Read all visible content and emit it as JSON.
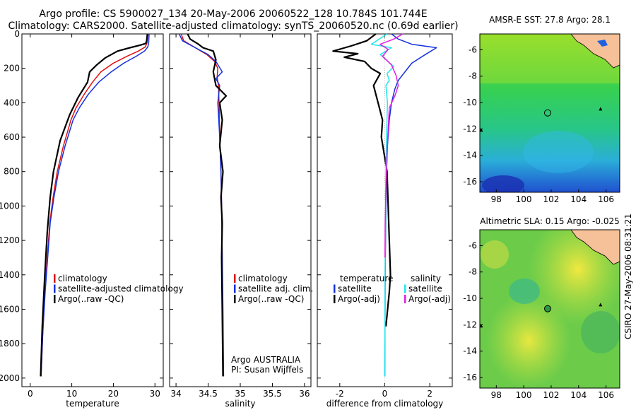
{
  "header": {
    "line1": "Argo profile: CS 5900027_134 20-May-2006 20060522_128 10.784S 101.744E",
    "line2": "Climatology: CARS2000. Satellite-adjusted climatology: synTS_20060520.nc (0.69d earlier)"
  },
  "side_label": "CSIRO 27-May-2006 08:31:21",
  "colors": {
    "red": "#dd1111",
    "blue": "#1530dd",
    "black": "#000000",
    "cyan": "#22e6ee",
    "magenta": "#e020e0"
  },
  "chart_data": [
    {
      "type": "line",
      "name": "temperature",
      "xlabel": "temperature",
      "xlim": [
        -2,
        32
      ],
      "ylim": [
        2050,
        0
      ],
      "xticks": [
        0,
        10,
        20,
        30
      ],
      "yticks": [
        0,
        200,
        400,
        600,
        800,
        1000,
        1200,
        1400,
        1600,
        1800,
        2000
      ],
      "legend": [
        "climatology",
        "satellite-adjusted climatology",
        "Argo(..raw -QC)"
      ],
      "series": [
        {
          "name": "climatology",
          "color": "red",
          "x": [
            28.3,
            28.1,
            27.7,
            26,
            23.3,
            20,
            17,
            15,
            13,
            11,
            9.8,
            8,
            6.5,
            5.5,
            4.7,
            4.1,
            3.5,
            3,
            2.6
          ],
          "y": [
            0,
            50,
            75,
            100,
            130,
            170,
            220,
            280,
            350,
            430,
            500,
            650,
            800,
            950,
            1100,
            1300,
            1500,
            1750,
            1990
          ]
        },
        {
          "name": "satellite-adjusted climatology",
          "color": "blue",
          "x": [
            28.6,
            28.5,
            28.3,
            27.5,
            25.5,
            22.5,
            19.5,
            16.5,
            14,
            11.8,
            10.3,
            8.4,
            6.8,
            5.7,
            4.8,
            4.2,
            3.6,
            3,
            2.6
          ],
          "y": [
            0,
            50,
            75,
            100,
            130,
            170,
            220,
            280,
            350,
            430,
            500,
            650,
            800,
            950,
            1100,
            1300,
            1500,
            1750,
            1990
          ]
        },
        {
          "name": "Argo(..raw -QC)",
          "color": "black",
          "x": [
            28.2,
            28,
            27.8,
            26.5,
            24,
            21,
            18,
            16,
            14.3,
            13.8,
            11.5,
            9.5,
            7.2,
            5.6,
            4.8,
            4.1,
            3.5,
            2.9,
            2.5
          ],
          "y": [
            0,
            40,
            55,
            65,
            80,
            100,
            140,
            180,
            220,
            280,
            370,
            470,
            620,
            800,
            950,
            1150,
            1400,
            1700,
            1990
          ]
        }
      ],
      "annotations": []
    },
    {
      "type": "line",
      "name": "salinity",
      "xlabel": "salinity",
      "xlim": [
        33.9,
        36.1
      ],
      "ylim": [
        2050,
        0
      ],
      "xticks": [
        34,
        34.5,
        35,
        35.5,
        36
      ],
      "xticklabels": [
        "34",
        "34.5",
        "35",
        "35.5",
        "36"
      ],
      "legend": [
        "climatology",
        "satellite adj. clim.",
        "Argo(..raw -QC)"
      ],
      "series": [
        {
          "name": "climatology",
          "color": "red",
          "x": [
            34.08,
            34.12,
            34.3,
            34.48,
            34.6,
            34.65,
            34.64,
            34.66,
            34.67,
            34.68,
            34.7,
            34.71,
            34.72,
            34.72,
            34.73
          ],
          "y": [
            0,
            40,
            80,
            120,
            160,
            200,
            250,
            300,
            400,
            600,
            800,
            1000,
            1300,
            1600,
            1990
          ]
        },
        {
          "name": "satellite adj. clim.",
          "color": "blue",
          "x": [
            34.05,
            34.1,
            34.3,
            34.5,
            34.62,
            34.72,
            34.62,
            34.68,
            34.65,
            34.68,
            34.7,
            34.71,
            34.72,
            34.73,
            34.74
          ],
          "y": [
            0,
            40,
            80,
            120,
            160,
            220,
            260,
            300,
            400,
            600,
            800,
            1000,
            1300,
            1600,
            1990
          ]
        },
        {
          "name": "Argo(..raw -QC)",
          "color": "black",
          "x": [
            34.18,
            34.22,
            34.35,
            34.42,
            34.58,
            34.62,
            34.58,
            34.62,
            34.78,
            34.68,
            34.72,
            34.68,
            34.73,
            34.7,
            34.72,
            34.71,
            34.72,
            34.73
          ],
          "y": [
            0,
            30,
            60,
            80,
            100,
            150,
            220,
            300,
            360,
            400,
            500,
            650,
            800,
            950,
            1100,
            1300,
            1600,
            1990
          ]
        }
      ],
      "annotations": [
        "Argo AUSTRALIA",
        "PI: Susan Wijffels"
      ]
    },
    {
      "type": "line",
      "name": "difference from climatology",
      "xlabel": "difference from climatology",
      "xlim": [
        -3,
        3
      ],
      "ylim": [
        2050,
        0
      ],
      "xticks": [
        -2,
        0,
        2
      ],
      "legend": [
        "temperature",
        "satellite",
        "Argo(-adj)",
        "salinity",
        "satellite",
        "Argo(-adj)"
      ],
      "series": [
        {
          "name": "temperature satellite",
          "color": "blue",
          "x": [
            0.3,
            0.6,
            1.2,
            2.3,
            1.8,
            1.2,
            0.9,
            0.6,
            0.45,
            0.3,
            0.2,
            0.12,
            0.08,
            0.05,
            0.02,
            0
          ],
          "y": [
            0,
            30,
            60,
            80,
            120,
            170,
            220,
            270,
            320,
            400,
            500,
            650,
            800,
            1000,
            1400,
            1990
          ]
        },
        {
          "name": "temperature Argo(-adj)",
          "color": "black",
          "x": [
            -0.4,
            -0.8,
            -1.5,
            -2.3,
            -1.2,
            -1.8,
            -0.9,
            -0.6,
            -0.2,
            -0.5,
            -0.3,
            -0.1,
            -0.15,
            0.1,
            0.15,
            0.2,
            0.25,
            0.2,
            0.05
          ],
          "y": [
            0,
            40,
            70,
            100,
            115,
            135,
            160,
            200,
            230,
            300,
            400,
            500,
            600,
            800,
            1000,
            1200,
            1400,
            1500,
            1700
          ]
        },
        {
          "name": "salinity satellite",
          "color": "cyan",
          "x": [
            0.1,
            -0.6,
            0.3,
            -0.2,
            0.4,
            0.1,
            0.2,
            0.05,
            0.12,
            0.08,
            0.05,
            0.04,
            0.02,
            0.01,
            0
          ],
          "y": [
            0,
            60,
            80,
            120,
            190,
            230,
            270,
            300,
            400,
            600,
            800,
            1000,
            1300,
            1600,
            1990
          ]
        },
        {
          "name": "salinity Argo(-adj)",
          "color": "magenta",
          "x": [
            0.8,
            0.4,
            -0.2,
            0.15,
            -0.1,
            0.3,
            0.5,
            0.6,
            0.45,
            0.2,
            0.15,
            0.1,
            0.05,
            0.02,
            0.01
          ],
          "y": [
            0,
            30,
            60,
            90,
            130,
            180,
            240,
            300,
            360,
            430,
            550,
            700,
            900,
            1100,
            1300
          ]
        }
      ],
      "annotations": []
    }
  ],
  "maps": [
    {
      "title": "AMSR-E SST: 27.8 Argo: 28.1",
      "xticks": [
        "98",
        "100",
        "102",
        "104",
        "106"
      ],
      "yticks": [
        "-6",
        "-8",
        "-10",
        "-12",
        "-14",
        "-16"
      ],
      "lon": [
        96.8,
        107
      ],
      "lat": [
        -16.8,
        -4.8
      ],
      "profile_marker": {
        "lon": 101.744,
        "lat": -10.784
      }
    },
    {
      "title": "Altimetric SLA: 0.15 Argo: -0.025",
      "xticks": [
        "98",
        "100",
        "102",
        "104",
        "106"
      ],
      "yticks": [
        "-6",
        "-8",
        "-10",
        "-12",
        "-14",
        "-16"
      ],
      "lon": [
        96.8,
        107
      ],
      "lat": [
        -16.8,
        -4.8
      ],
      "profile_marker": {
        "lon": 101.744,
        "lat": -10.784
      }
    }
  ]
}
